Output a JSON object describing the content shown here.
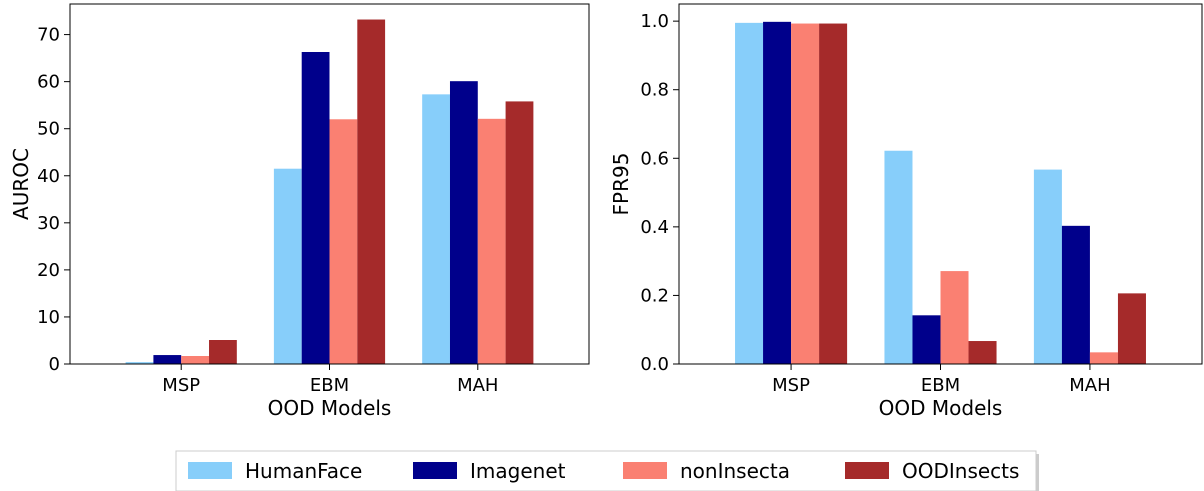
{
  "legend": {
    "entries": [
      {
        "name": "HumanFace",
        "color": "#87CEFA"
      },
      {
        "name": "Imagenet",
        "color": "#00008B"
      },
      {
        "name": "nonInsecta",
        "color": "#FA8072"
      },
      {
        "name": "OODInsects",
        "color": "#A52A2A"
      }
    ],
    "placement": "bottom-center"
  },
  "chart_data": [
    {
      "type": "bar",
      "categories": [
        "MSP",
        "EBM",
        "MAH"
      ],
      "xlabel": "OOD Models",
      "ylabel": "AUROC",
      "ylim": [
        0,
        76.5
      ],
      "yticks": [
        0,
        10,
        20,
        30,
        40,
        50,
        60,
        70
      ],
      "ytick_labels": [
        "0",
        "10",
        "20",
        "30",
        "40",
        "50",
        "60",
        "70"
      ],
      "grid": false,
      "series": [
        {
          "name": "HumanFace",
          "values": [
            0.4,
            41.5,
            57.3
          ]
        },
        {
          "name": "Imagenet",
          "values": [
            1.9,
            66.3,
            60.1
          ]
        },
        {
          "name": "nonInsecta",
          "values": [
            1.7,
            52.0,
            52.1
          ]
        },
        {
          "name": "OODInsects",
          "values": [
            5.1,
            73.2,
            55.8
          ]
        }
      ]
    },
    {
      "type": "bar",
      "categories": [
        "MSP",
        "EBM",
        "MAH"
      ],
      "xlabel": "OOD Models",
      "ylabel": "FPR95",
      "ylim": [
        0,
        1.05
      ],
      "yticks": [
        0,
        0.2,
        0.4,
        0.6,
        0.8,
        1.0
      ],
      "ytick_labels": [
        "0.0",
        "0.2",
        "0.4",
        "0.6",
        "0.8",
        "1.0"
      ],
      "grid": false,
      "series": [
        {
          "name": "HumanFace",
          "values": [
            0.995,
            0.622,
            0.567
          ]
        },
        {
          "name": "Imagenet",
          "values": [
            0.998,
            0.142,
            0.403
          ]
        },
        {
          "name": "nonInsecta",
          "values": [
            0.993,
            0.271,
            0.034
          ]
        },
        {
          "name": "OODInsects",
          "values": [
            0.993,
            0.067,
            0.206
          ]
        }
      ]
    }
  ]
}
